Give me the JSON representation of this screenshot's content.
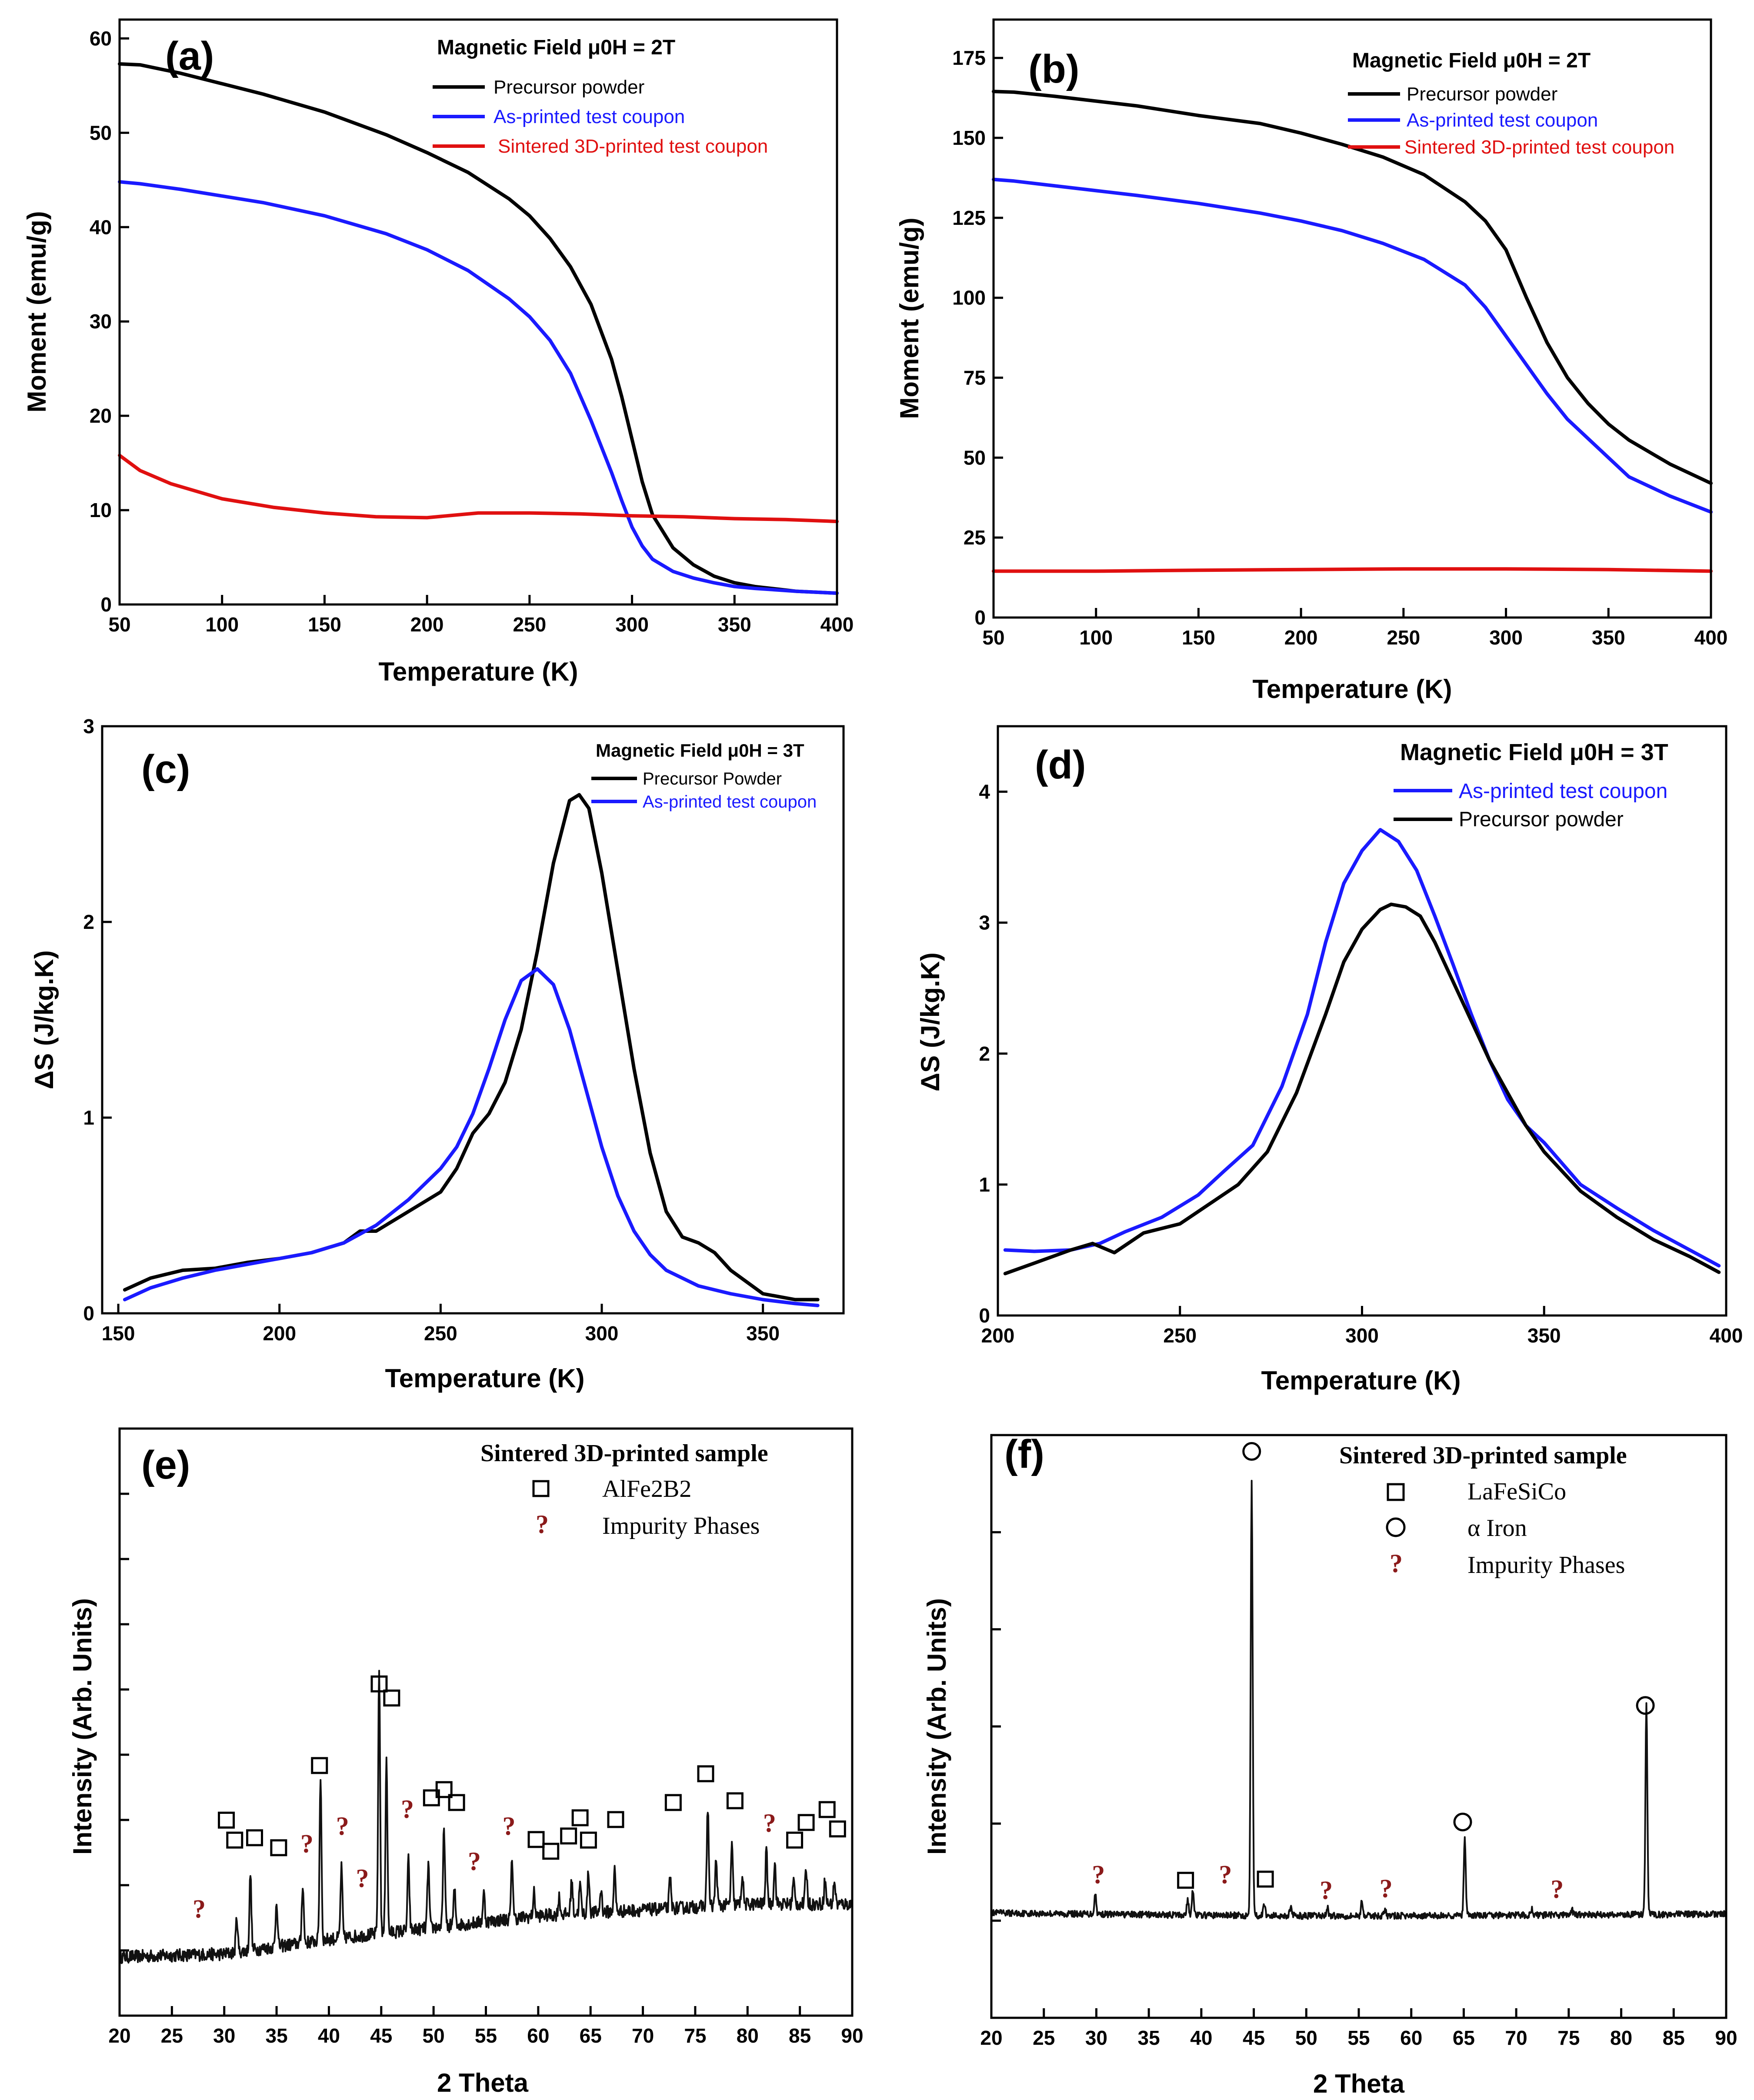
{
  "colors": {
    "black": "#000000",
    "blue": "#1a1aff",
    "red": "#e01010",
    "impurity": "#8b1a1a"
  },
  "chart_data": [
    {
      "id": "a",
      "type": "line",
      "panel_label": "(a)",
      "legend_title": "Magnetic Field μ0H = 2T",
      "xlabel": "Temperature (K)",
      "ylabel": "Moment (emu/g)",
      "xlim": [
        50,
        400
      ],
      "ylim": [
        0,
        62
      ],
      "xticks": [
        50,
        100,
        150,
        200,
        250,
        300,
        350,
        400
      ],
      "yticks": [
        0,
        10,
        20,
        30,
        40,
        50,
        60
      ],
      "series": [
        {
          "name": "Precursor powder",
          "color": "#000000",
          "x": [
            50,
            60,
            80,
            100,
            120,
            150,
            180,
            200,
            220,
            240,
            250,
            260,
            270,
            280,
            290,
            295,
            300,
            305,
            310,
            320,
            330,
            340,
            350,
            360,
            380,
            400
          ],
          "y": [
            57.3,
            57.2,
            56.3,
            55.2,
            54.1,
            52.2,
            49.8,
            47.9,
            45.8,
            43.0,
            41.2,
            38.8,
            35.8,
            31.8,
            26.0,
            22.0,
            17.5,
            13.0,
            9.5,
            6.0,
            4.2,
            3.0,
            2.3,
            1.9,
            1.4,
            1.2
          ]
        },
        {
          "name": "As-printed test coupon",
          "color": "#1a1aff",
          "x": [
            50,
            60,
            80,
            100,
            120,
            150,
            180,
            200,
            220,
            240,
            250,
            260,
            270,
            280,
            290,
            295,
            300,
            305,
            310,
            320,
            330,
            340,
            350,
            360,
            380,
            400
          ],
          "y": [
            44.8,
            44.6,
            44.0,
            43.3,
            42.6,
            41.2,
            39.3,
            37.6,
            35.4,
            32.4,
            30.5,
            28.0,
            24.5,
            19.5,
            14.0,
            11.0,
            8.2,
            6.2,
            4.8,
            3.5,
            2.8,
            2.3,
            1.9,
            1.7,
            1.4,
            1.2
          ]
        },
        {
          "name": "Sintered 3D-printed test coupon",
          "color": "#e01010",
          "x": [
            50,
            60,
            75,
            100,
            125,
            150,
            175,
            200,
            225,
            250,
            275,
            300,
            325,
            350,
            375,
            400
          ],
          "y": [
            15.8,
            14.2,
            12.8,
            11.2,
            10.3,
            9.7,
            9.3,
            9.2,
            9.7,
            9.7,
            9.6,
            9.4,
            9.3,
            9.1,
            9.0,
            8.8
          ]
        }
      ]
    },
    {
      "id": "b",
      "type": "line",
      "panel_label": "(b)",
      "legend_title": "Magnetic Field μ0H = 2T",
      "xlabel": "Temperature (K)",
      "ylabel": "Moment (emu/g)",
      "xlim": [
        50,
        400
      ],
      "ylim": [
        0,
        187
      ],
      "xticks": [
        50,
        100,
        150,
        200,
        250,
        300,
        350,
        400
      ],
      "yticks": [
        0,
        25,
        50,
        75,
        100,
        125,
        150,
        175
      ],
      "series": [
        {
          "name": "Precursor powder",
          "color": "#000000",
          "x": [
            50,
            60,
            80,
            100,
            120,
            150,
            180,
            200,
            220,
            240,
            260,
            280,
            290,
            300,
            310,
            320,
            330,
            340,
            350,
            360,
            380,
            400
          ],
          "y": [
            164.5,
            164.3,
            163.0,
            161.5,
            160.0,
            157.0,
            154.5,
            151.5,
            148.0,
            144.0,
            138.5,
            130.0,
            124.0,
            115.0,
            100.0,
            86.0,
            75.0,
            67.0,
            60.5,
            55.5,
            48.0,
            42.0
          ]
        },
        {
          "name": "As-printed test coupon",
          "color": "#1a1aff",
          "x": [
            50,
            60,
            80,
            100,
            120,
            150,
            180,
            200,
            220,
            240,
            260,
            280,
            290,
            300,
            310,
            320,
            330,
            340,
            350,
            360,
            380,
            400
          ],
          "y": [
            137.0,
            136.5,
            135.0,
            133.5,
            132.0,
            129.5,
            126.5,
            124.0,
            121.0,
            117.0,
            112.0,
            104.0,
            97.0,
            88.0,
            79.0,
            70.0,
            62.0,
            56.0,
            50.0,
            44.0,
            38.0,
            33.0
          ]
        },
        {
          "name": "Sintered 3D-printed test coupon",
          "color": "#e01010",
          "x": [
            50,
            100,
            150,
            200,
            250,
            300,
            350,
            400
          ],
          "y": [
            14.5,
            14.5,
            14.8,
            15.0,
            15.2,
            15.2,
            15.0,
            14.5
          ]
        }
      ]
    },
    {
      "id": "c",
      "type": "line",
      "panel_label": "(c)",
      "legend_title": "Magnetic Field μ0H = 3T",
      "xlabel": "Temperature (K)",
      "ylabel": "ΔS (J/kg.K)",
      "xlim": [
        145,
        375
      ],
      "ylim": [
        0,
        3
      ],
      "xticks": [
        150,
        200,
        250,
        300,
        350
      ],
      "yticks": [
        0,
        1,
        2,
        3
      ],
      "series": [
        {
          "name": "Precursor Powder",
          "color": "#000000",
          "x": [
            152,
            160,
            170,
            180,
            190,
            200,
            210,
            220,
            225,
            230,
            240,
            250,
            255,
            260,
            265,
            270,
            275,
            280,
            285,
            290,
            293,
            296,
            300,
            305,
            310,
            315,
            320,
            325,
            330,
            335,
            340,
            350,
            360,
            367
          ],
          "y": [
            0.12,
            0.18,
            0.22,
            0.23,
            0.26,
            0.28,
            0.31,
            0.36,
            0.42,
            0.42,
            0.52,
            0.62,
            0.74,
            0.92,
            1.02,
            1.18,
            1.45,
            1.85,
            2.3,
            2.62,
            2.65,
            2.58,
            2.25,
            1.75,
            1.25,
            0.82,
            0.52,
            0.39,
            0.36,
            0.31,
            0.22,
            0.1,
            0.07,
            0.07
          ]
        },
        {
          "name": "As-printed test coupon",
          "color": "#1a1aff",
          "x": [
            152,
            160,
            170,
            180,
            190,
            200,
            210,
            220,
            230,
            240,
            250,
            255,
            260,
            265,
            270,
            275,
            280,
            285,
            290,
            295,
            300,
            305,
            310,
            315,
            320,
            330,
            340,
            350,
            360,
            367
          ],
          "y": [
            0.07,
            0.13,
            0.18,
            0.22,
            0.25,
            0.28,
            0.31,
            0.36,
            0.45,
            0.58,
            0.74,
            0.85,
            1.02,
            1.25,
            1.5,
            1.7,
            1.76,
            1.68,
            1.45,
            1.15,
            0.85,
            0.6,
            0.42,
            0.3,
            0.22,
            0.14,
            0.1,
            0.07,
            0.05,
            0.04
          ]
        }
      ]
    },
    {
      "id": "d",
      "type": "line",
      "panel_label": "(d)",
      "legend_title": "Magnetic Field μ0H = 3T",
      "xlabel": "Temperature (K)",
      "ylabel": "ΔS (J/kg.K)",
      "xlim": [
        200,
        400
      ],
      "ylim": [
        0,
        4.5
      ],
      "xticks": [
        200,
        250,
        300,
        350,
        400
      ],
      "yticks": [
        0,
        1,
        2,
        3,
        4
      ],
      "series": [
        {
          "name": "As-printed test coupon",
          "color": "#1a1aff",
          "x": [
            202,
            210,
            220,
            228,
            235,
            245,
            255,
            262,
            270,
            278,
            285,
            290,
            295,
            300,
            305,
            310,
            315,
            320,
            325,
            330,
            335,
            340,
            345,
            350,
            360,
            370,
            380,
            390,
            398
          ],
          "y": [
            0.5,
            0.49,
            0.5,
            0.55,
            0.64,
            0.75,
            0.92,
            1.1,
            1.3,
            1.75,
            2.3,
            2.85,
            3.3,
            3.55,
            3.71,
            3.62,
            3.4,
            3.05,
            2.68,
            2.3,
            1.95,
            1.65,
            1.45,
            1.32,
            1.0,
            0.82,
            0.65,
            0.5,
            0.38
          ]
        },
        {
          "name": "Precursor powder",
          "color": "#000000",
          "x": [
            202,
            210,
            220,
            226,
            232,
            240,
            250,
            258,
            266,
            274,
            282,
            290,
            295,
            300,
            305,
            308,
            312,
            316,
            320,
            325,
            330,
            335,
            340,
            345,
            350,
            360,
            370,
            380,
            390,
            398
          ],
          "y": [
            0.32,
            0.4,
            0.5,
            0.55,
            0.48,
            0.63,
            0.7,
            0.85,
            1.0,
            1.25,
            1.7,
            2.3,
            2.7,
            2.95,
            3.1,
            3.14,
            3.12,
            3.05,
            2.85,
            2.55,
            2.25,
            1.95,
            1.7,
            1.45,
            1.25,
            0.95,
            0.75,
            0.58,
            0.45,
            0.33
          ]
        }
      ]
    },
    {
      "id": "e",
      "type": "line",
      "panel_label": "(e)",
      "legend_title": "Sintered 3D-printed sample",
      "legend": {
        "square": "AlFe2B2",
        "impurity": "Impurity Phases",
        "qmark": "?"
      },
      "xlabel": "2 Theta",
      "ylabel": "Intensity (Arb. Units)",
      "xlim": [
        20,
        90
      ],
      "ylim": [
        0,
        100
      ],
      "xticks": [
        20,
        25,
        30,
        35,
        40,
        45,
        50,
        55,
        60,
        65,
        70,
        75,
        80,
        85,
        90
      ],
      "baseline": {
        "x": [
          20,
          30,
          40,
          50,
          60,
          70,
          80,
          90
        ],
        "y": [
          10,
          10.5,
          13,
          15,
          17,
          18,
          19,
          19
        ]
      },
      "peaks": [
        [
          31.2,
          6
        ],
        [
          32.5,
          13
        ],
        [
          35,
          8
        ],
        [
          37.5,
          10
        ],
        [
          39.2,
          28
        ],
        [
          41.2,
          12
        ],
        [
          44.8,
          45
        ],
        [
          45.5,
          30
        ],
        [
          47.6,
          12
        ],
        [
          49.5,
          11
        ],
        [
          51,
          17
        ],
        [
          52,
          6
        ],
        [
          54.8,
          5
        ],
        [
          57.5,
          10
        ],
        [
          59.6,
          4
        ],
        [
          62,
          3
        ],
        [
          63.2,
          6
        ],
        [
          64,
          5
        ],
        [
          64.8,
          7
        ],
        [
          66,
          4
        ],
        [
          67.3,
          7
        ],
        [
          72.6,
          5
        ],
        [
          76.2,
          17
        ],
        [
          77,
          8
        ],
        [
          78.5,
          10
        ],
        [
          79.5,
          5
        ],
        [
          81.8,
          9
        ],
        [
          82.6,
          7
        ],
        [
          84.4,
          4
        ],
        [
          85.6,
          6
        ],
        [
          87.4,
          4
        ],
        [
          88.3,
          4
        ]
      ],
      "markers": {
        "square": [
          [
            30.2,
            33.3
          ],
          [
            31,
            29.9
          ],
          [
            32.9,
            30.3
          ],
          [
            35.2,
            28.6
          ],
          [
            39.1,
            42.6
          ],
          [
            44.8,
            56.5
          ],
          [
            46,
            54.1
          ],
          [
            49.8,
            37.1
          ],
          [
            51,
            38.5
          ],
          [
            52.2,
            36.3
          ],
          [
            59.8,
            30
          ],
          [
            61.2,
            28
          ],
          [
            62.9,
            30.6
          ],
          [
            64,
            33.7
          ],
          [
            64.8,
            29.9
          ],
          [
            67.4,
            33.4
          ],
          [
            72.9,
            36.3
          ],
          [
            76,
            41.2
          ],
          [
            78.8,
            36.6
          ],
          [
            84.5,
            29.9
          ],
          [
            85.6,
            32.9
          ],
          [
            87.6,
            35.1
          ],
          [
            88.6,
            31.8
          ]
        ],
        "impurity": [
          [
            27.6,
            18.2
          ],
          [
            37.9,
            29.3
          ],
          [
            41.3,
            32.3
          ],
          [
            43.2,
            23.4
          ],
          [
            47.5,
            35.2
          ],
          [
            53.9,
            26.3
          ],
          [
            57.2,
            32.3
          ],
          [
            82.1,
            32.8
          ]
        ]
      }
    },
    {
      "id": "f",
      "type": "line",
      "panel_label": "(f)",
      "legend_title": "Sintered 3D-printed sample",
      "legend": {
        "square": "LaFeSiCo",
        "circle": "α Iron",
        "impurity": "Impurity Phases",
        "qmark": "?"
      },
      "xlabel": "2 Theta",
      "ylabel": "Intensity (Arb. Units)",
      "xlim": [
        20,
        90
      ],
      "ylim": [
        0,
        100
      ],
      "xticks": [
        20,
        25,
        30,
        35,
        40,
        45,
        50,
        55,
        60,
        65,
        70,
        75,
        80,
        85,
        90
      ],
      "baseline": {
        "x": [
          20,
          30,
          40,
          50,
          60,
          70,
          80,
          90
        ],
        "y": [
          18,
          17.8,
          17.6,
          17.5,
          17.5,
          17.6,
          17.7,
          17.8
        ]
      },
      "peaks": [
        [
          29.9,
          3.5
        ],
        [
          38.7,
          2.5
        ],
        [
          39.2,
          4.5
        ],
        [
          44.8,
          75
        ],
        [
          46,
          2
        ],
        [
          48.5,
          1.5
        ],
        [
          52,
          1.5
        ],
        [
          55.3,
          2.5
        ],
        [
          57.5,
          1
        ],
        [
          65.1,
          13
        ],
        [
          71.5,
          1
        ],
        [
          75.3,
          1
        ],
        [
          82.4,
          36
        ]
      ],
      "markers": {
        "square": [
          [
            38.5,
            23.6
          ],
          [
            46.1,
            23.8
          ]
        ],
        "circle": [
          [
            44.8,
            97.2
          ],
          [
            64.9,
            33.6
          ],
          [
            82.3,
            53.6
          ]
        ],
        "impurity": [
          [
            30.2,
            24.6
          ],
          [
            42.3,
            24.6
          ],
          [
            51.9,
            21.9
          ],
          [
            57.6,
            22.2
          ],
          [
            73.9,
            22.1
          ]
        ]
      }
    }
  ]
}
